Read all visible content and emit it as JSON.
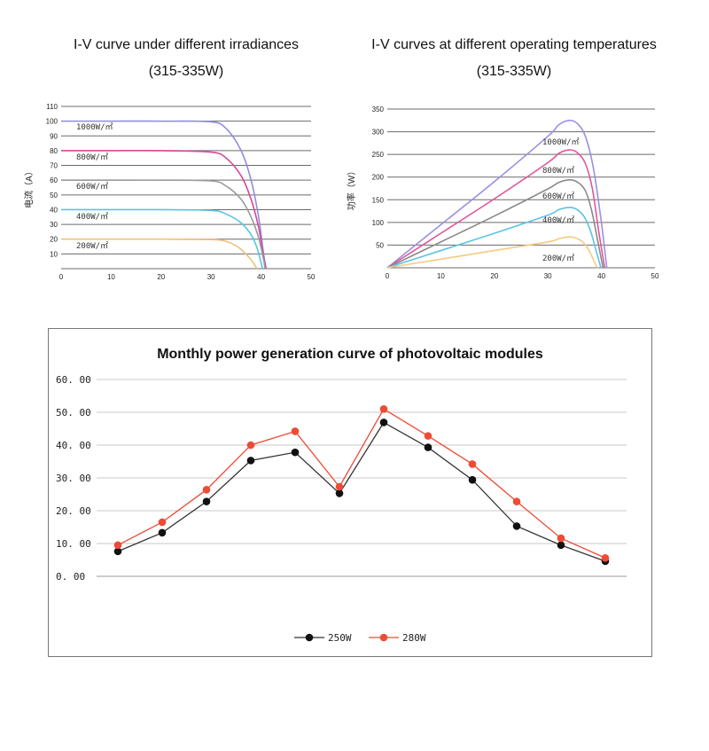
{
  "chart_data": [
    {
      "type": "line",
      "title": "I-V curve under different irradiances",
      "subtitle": "(315-335W)",
      "xlabel": "",
      "ylabel": "电流（A）",
      "xlim": [
        0,
        50
      ],
      "ylim": [
        0,
        110
      ],
      "xticks": [
        0,
        10,
        20,
        30,
        40,
        50
      ],
      "yticks": [
        10,
        20,
        30,
        40,
        50,
        60,
        70,
        80,
        90,
        100,
        110
      ],
      "grid": true,
      "series": [
        {
          "name": "1000W/㎡",
          "color": "#8f8ee0",
          "x": [
            0,
            10,
            20,
            30,
            33,
            36,
            38,
            39.5,
            40.5,
            41
          ],
          "y": [
            100,
            100,
            100,
            99.5,
            95,
            80,
            60,
            35,
            10,
            0
          ]
        },
        {
          "name": "800W/㎡",
          "color": "#d44a9a",
          "x": [
            0,
            10,
            20,
            30,
            33,
            36,
            38,
            39.5,
            40.5,
            41
          ],
          "y": [
            80,
            80,
            80,
            79,
            75,
            63,
            47,
            28,
            8,
            0
          ]
        },
        {
          "name": "600W/㎡",
          "color": "#9a9a9a",
          "x": [
            0,
            10,
            20,
            30,
            33,
            36,
            38,
            39.5,
            40.5,
            40.8
          ],
          "y": [
            60,
            60,
            60,
            59.5,
            56,
            47,
            35,
            21,
            6,
            0
          ]
        },
        {
          "name": "400W/㎡",
          "color": "#57c4e3",
          "x": [
            0,
            10,
            20,
            30,
            33,
            36,
            38,
            39.2,
            40,
            40.3
          ],
          "y": [
            40,
            40,
            40,
            39.5,
            37,
            31,
            23,
            14,
            4,
            0
          ]
        },
        {
          "name": "200W/㎡",
          "color": "#f0c27a",
          "x": [
            0,
            10,
            20,
            30,
            33,
            35,
            36.5,
            38,
            38.8,
            39.2
          ],
          "y": [
            20,
            20,
            20,
            19.7,
            18.5,
            15.5,
            11.5,
            6,
            2,
            0
          ]
        }
      ]
    },
    {
      "type": "line",
      "title": "I-V curves at different operating temperatures",
      "subtitle": "(315-335W)",
      "xlabel": "",
      "ylabel": "功率（W）",
      "xlim": [
        0,
        50
      ],
      "ylim": [
        0,
        350
      ],
      "xticks": [
        0,
        10,
        20,
        30,
        40,
        50
      ],
      "yticks": [
        50,
        100,
        150,
        200,
        250,
        300,
        350
      ],
      "grid": true,
      "series": [
        {
          "name": "1000W/㎡",
          "color": "#9b8fe0",
          "x": [
            0,
            10,
            20,
            30,
            32,
            34,
            35.5,
            37,
            38.5,
            40,
            41
          ],
          "y": [
            0,
            95,
            190,
            290,
            315,
            325,
            318,
            290,
            220,
            100,
            0
          ]
        },
        {
          "name": "800W/㎡",
          "color": "#e0559a",
          "x": [
            0,
            10,
            20,
            30,
            32,
            34,
            35.5,
            37,
            38.3,
            39.5,
            40.6
          ],
          "y": [
            0,
            76,
            152,
            232,
            252,
            260,
            254,
            230,
            175,
            80,
            0
          ]
        },
        {
          "name": "600W/㎡",
          "color": "#8a8a8a",
          "x": [
            0,
            10,
            20,
            30,
            32,
            34,
            35.5,
            37,
            38.2,
            39.3,
            40.3
          ],
          "y": [
            0,
            57,
            114,
            174,
            188,
            194,
            189,
            170,
            125,
            60,
            0
          ]
        },
        {
          "name": "400W/㎡",
          "color": "#5bc3e6",
          "x": [
            0,
            10,
            20,
            30,
            32,
            34,
            35.5,
            36.8,
            38,
            39,
            39.9
          ],
          "y": [
            0,
            38,
            76,
            116,
            128,
            133,
            128,
            112,
            80,
            38,
            0
          ]
        },
        {
          "name": "200W/㎡",
          "color": "#f4ca86",
          "x": [
            0,
            10,
            20,
            30,
            32,
            34,
            35.3,
            36.5,
            37.6,
            38.5,
            39.2
          ],
          "y": [
            0,
            19,
            38,
            57,
            64,
            68,
            65,
            57,
            40,
            18,
            0
          ]
        }
      ]
    },
    {
      "type": "line",
      "title": "Monthly power generation curve of photovoltaic modules",
      "xlabel": "",
      "ylabel": "",
      "ylim": [
        0,
        60
      ],
      "yticks": [
        "0. 00",
        "10. 00",
        "20. 00",
        "30. 00",
        "40. 00",
        "50. 00",
        "60. 00"
      ],
      "grid": true,
      "legend": "bottom",
      "x": [
        1,
        2,
        3,
        4,
        5,
        6,
        7,
        8,
        9,
        10,
        11,
        12
      ],
      "series": [
        {
          "name": "250W",
          "color": "#111111",
          "values": [
            7.6,
            13.3,
            22.8,
            35.3,
            37.8,
            25.3,
            46.9,
            39.3,
            29.4,
            15.3,
            9.5,
            4.6
          ]
        },
        {
          "name": "280W",
          "color": "#ee4b35",
          "values": [
            9.5,
            16.5,
            26.4,
            40.0,
            44.2,
            27.3,
            51.0,
            42.8,
            34.2,
            22.8,
            11.6,
            5.6
          ]
        }
      ]
    }
  ]
}
